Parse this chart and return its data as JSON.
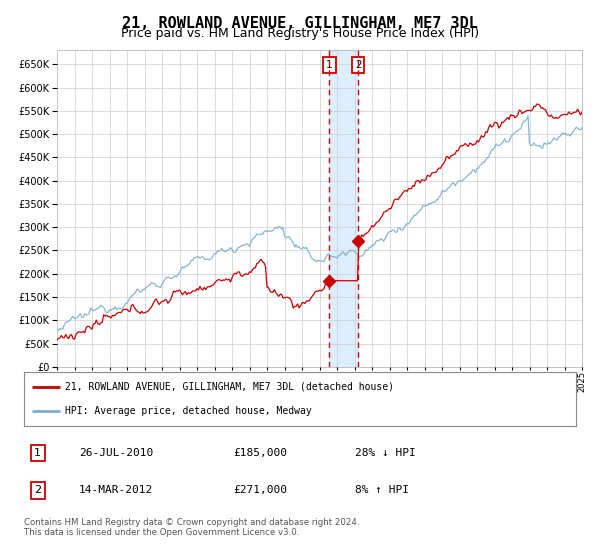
{
  "title": "21, ROWLAND AVENUE, GILLINGHAM, ME7 3DL",
  "subtitle": "Price paid vs. HM Land Registry's House Price Index (HPI)",
  "title_fontsize": 11,
  "subtitle_fontsize": 9,
  "x_start_year": 1995,
  "x_end_year": 2025,
  "ylim": [
    0,
    680000
  ],
  "yticks": [
    0,
    50000,
    100000,
    150000,
    200000,
    250000,
    300000,
    350000,
    400000,
    450000,
    500000,
    550000,
    600000,
    650000
  ],
  "red_color": "#cc0000",
  "blue_color": "#7aadcf",
  "bg_color": "#ffffff",
  "grid_color": "#cccccc",
  "highlight_color": "#ddeeff",
  "transaction1_year": 2010.57,
  "transaction1_value": 185000,
  "transaction2_year": 2012.21,
  "transaction2_value": 271000,
  "legend_line1": "21, ROWLAND AVENUE, GILLINGHAM, ME7 3DL (detached house)",
  "legend_line2": "HPI: Average price, detached house, Medway",
  "table_row1_num": "1",
  "table_row1_date": "26-JUL-2010",
  "table_row1_price": "£185,000",
  "table_row1_hpi": "28% ↓ HPI",
  "table_row2_num": "2",
  "table_row2_date": "14-MAR-2012",
  "table_row2_price": "£271,000",
  "table_row2_hpi": "8% ↑ HPI",
  "footer": "Contains HM Land Registry data © Crown copyright and database right 2024.\nThis data is licensed under the Open Government Licence v3.0."
}
